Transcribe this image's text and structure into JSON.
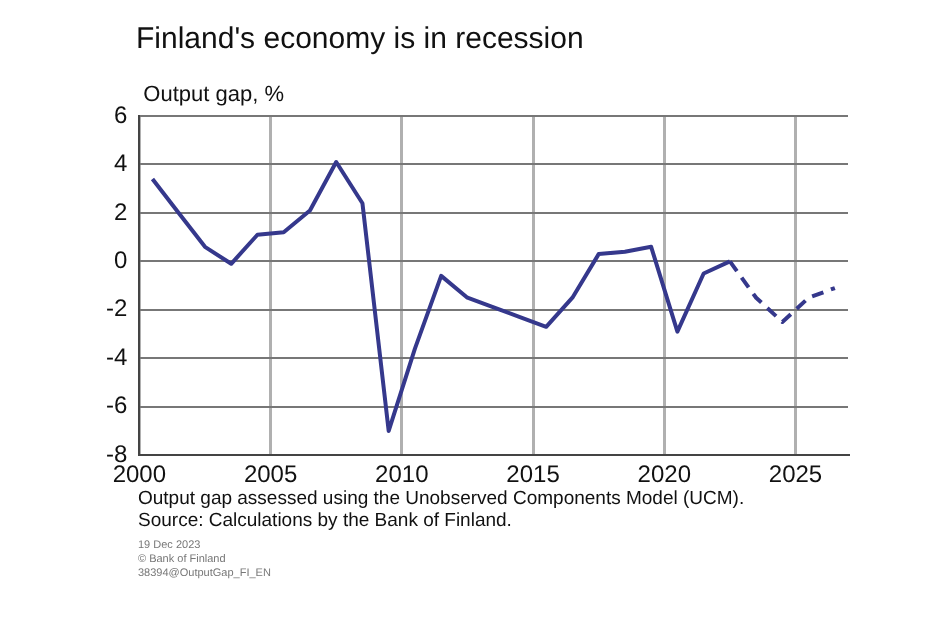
{
  "chart_data": {
    "type": "line",
    "title": "Finland's economy is in recession",
    "ylabel": "Output gap, %",
    "xlim": [
      2000,
      2027
    ],
    "xticks": [
      2000,
      2005,
      2010,
      2015,
      2020,
      2025
    ],
    "ylim": [
      -8,
      6
    ],
    "yticks": [
      -8,
      -6,
      -4,
      -2,
      0,
      2,
      4,
      6
    ],
    "grid": true,
    "marker": "none",
    "series": [
      {
        "color": "#35388c",
        "line_style": "solid",
        "x": [
          2000.5,
          2001.5,
          2002.5,
          2003.5,
          2004.5,
          2005.5,
          2006.5,
          2007.5,
          2008.5,
          2009.5,
          2010.5,
          2011.5,
          2012.5,
          2013.5,
          2014.5,
          2015.5,
          2016.5,
          2017.5,
          2018.5,
          2019.5,
          2020.5,
          2021.5,
          2022.5
        ],
        "values": [
          3.4,
          2.0,
          0.6,
          -0.1,
          1.1,
          1.2,
          2.1,
          4.1,
          2.4,
          -7.0,
          -3.6,
          -0.6,
          -1.5,
          -1.9,
          -2.3,
          -2.7,
          -1.5,
          0.3,
          0.4,
          0.6,
          -2.9,
          -0.5,
          0.0
        ]
      },
      {
        "color": "#35388c",
        "line_style": "dashed",
        "x": [
          2022.5,
          2023.5,
          2024.5,
          2025.5,
          2026.5
        ],
        "values": [
          0.0,
          -1.5,
          -2.5,
          -1.5,
          -1.1
        ]
      }
    ],
    "annotations": [
      "Output gap assessed using the Unobserved Components Model (UCM).",
      "Source: Calculations by the Bank of Finland.",
      "19 Dec 2023",
      "© Bank of Finland",
      "38394@OutputGap_FI_EN"
    ]
  }
}
